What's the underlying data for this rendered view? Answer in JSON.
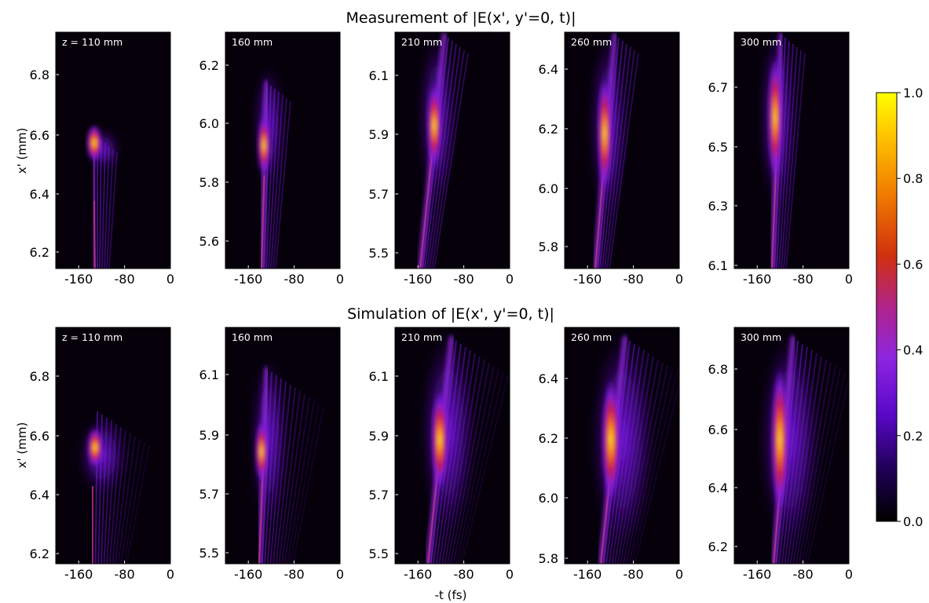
{
  "figure": {
    "row_titles": [
      "Measurement of |E(x', y'=0, t)|",
      "Simulation of |E(x', y'=0, t)|"
    ],
    "ylabel": "x' (mm)",
    "xlabel": "-t (fs)",
    "colorbar": {
      "min": 0.0,
      "max": 1.0,
      "ticks": [
        "0.0",
        "0.2",
        "0.4",
        "0.6",
        "0.8",
        "1.0"
      ],
      "colormap": "gnuplot2-like black-purple-red-yellow"
    }
  },
  "chart_data": [
    {
      "type": "heatmap",
      "row": "measurement",
      "label": "z = 110 mm",
      "x_ticks": [
        "-160",
        "-80",
        "0"
      ],
      "y_ticks": [
        "6.2",
        "6.4",
        "6.6",
        "6.8"
      ],
      "xlim": [
        -200,
        0
      ],
      "ylim": [
        6.16,
        6.95
      ]
    },
    {
      "type": "heatmap",
      "row": "measurement",
      "label": "160 mm",
      "x_ticks": [
        "-160",
        "-80",
        "0"
      ],
      "y_ticks": [
        "5.6",
        "5.8",
        "6.0",
        "6.2"
      ],
      "xlim": [
        -200,
        0
      ],
      "ylim": [
        5.5,
        6.3
      ]
    },
    {
      "type": "heatmap",
      "row": "measurement",
      "label": "210 mm",
      "x_ticks": [
        "-160",
        "-80",
        "0"
      ],
      "y_ticks": [
        "5.5",
        "5.7",
        "5.9",
        "6.1"
      ],
      "xlim": [
        -200,
        0
      ],
      "ylim": [
        5.45,
        6.25
      ]
    },
    {
      "type": "heatmap",
      "row": "measurement",
      "label": "260 mm",
      "x_ticks": [
        "-160",
        "-80",
        "0"
      ],
      "y_ticks": [
        "5.8",
        "6.0",
        "6.2",
        "6.4"
      ],
      "xlim": [
        -200,
        0
      ],
      "ylim": [
        5.72,
        6.52
      ]
    },
    {
      "type": "heatmap",
      "row": "measurement",
      "label": "300 mm",
      "x_ticks": [
        "-160",
        "-80",
        "0"
      ],
      "y_ticks": [
        "6.1",
        "6.3",
        "6.5",
        "6.7"
      ],
      "xlim": [
        -200,
        0
      ],
      "ylim": [
        6.1,
        6.9
      ]
    },
    {
      "type": "heatmap",
      "row": "simulation",
      "label": "z = 110 mm",
      "x_ticks": [
        "-160",
        "-80",
        "0"
      ],
      "y_ticks": [
        "6.2",
        "6.4",
        "6.6",
        "6.8"
      ],
      "xlim": [
        -200,
        0
      ],
      "ylim": [
        6.16,
        6.95
      ]
    },
    {
      "type": "heatmap",
      "row": "simulation",
      "label": "160 mm",
      "x_ticks": [
        "-160",
        "-80",
        "0"
      ],
      "y_ticks": [
        "5.5",
        "5.7",
        "5.9",
        "6.1"
      ],
      "xlim": [
        -200,
        0
      ],
      "ylim": [
        5.45,
        6.25
      ]
    },
    {
      "type": "heatmap",
      "row": "simulation",
      "label": "210 mm",
      "x_ticks": [
        "-160",
        "-80",
        "0"
      ],
      "y_ticks": [
        "5.5",
        "5.7",
        "5.9",
        "6.1"
      ],
      "xlim": [
        -200,
        0
      ],
      "ylim": [
        5.45,
        6.25
      ]
    },
    {
      "type": "heatmap",
      "row": "simulation",
      "label": "260 mm",
      "x_ticks": [
        "-160",
        "-80",
        "0"
      ],
      "y_ticks": [
        "5.8",
        "6.0",
        "6.2",
        "6.4"
      ],
      "xlim": [
        -200,
        0
      ],
      "ylim": [
        5.77,
        6.57
      ]
    },
    {
      "type": "heatmap",
      "row": "simulation",
      "label": "300 mm",
      "x_ticks": [
        "-160",
        "-80",
        "0"
      ],
      "y_ticks": [
        "6.2",
        "6.4",
        "6.6",
        "6.8"
      ],
      "xlim": [
        -200,
        0
      ],
      "ylim": [
        6.12,
        6.92
      ]
    }
  ]
}
